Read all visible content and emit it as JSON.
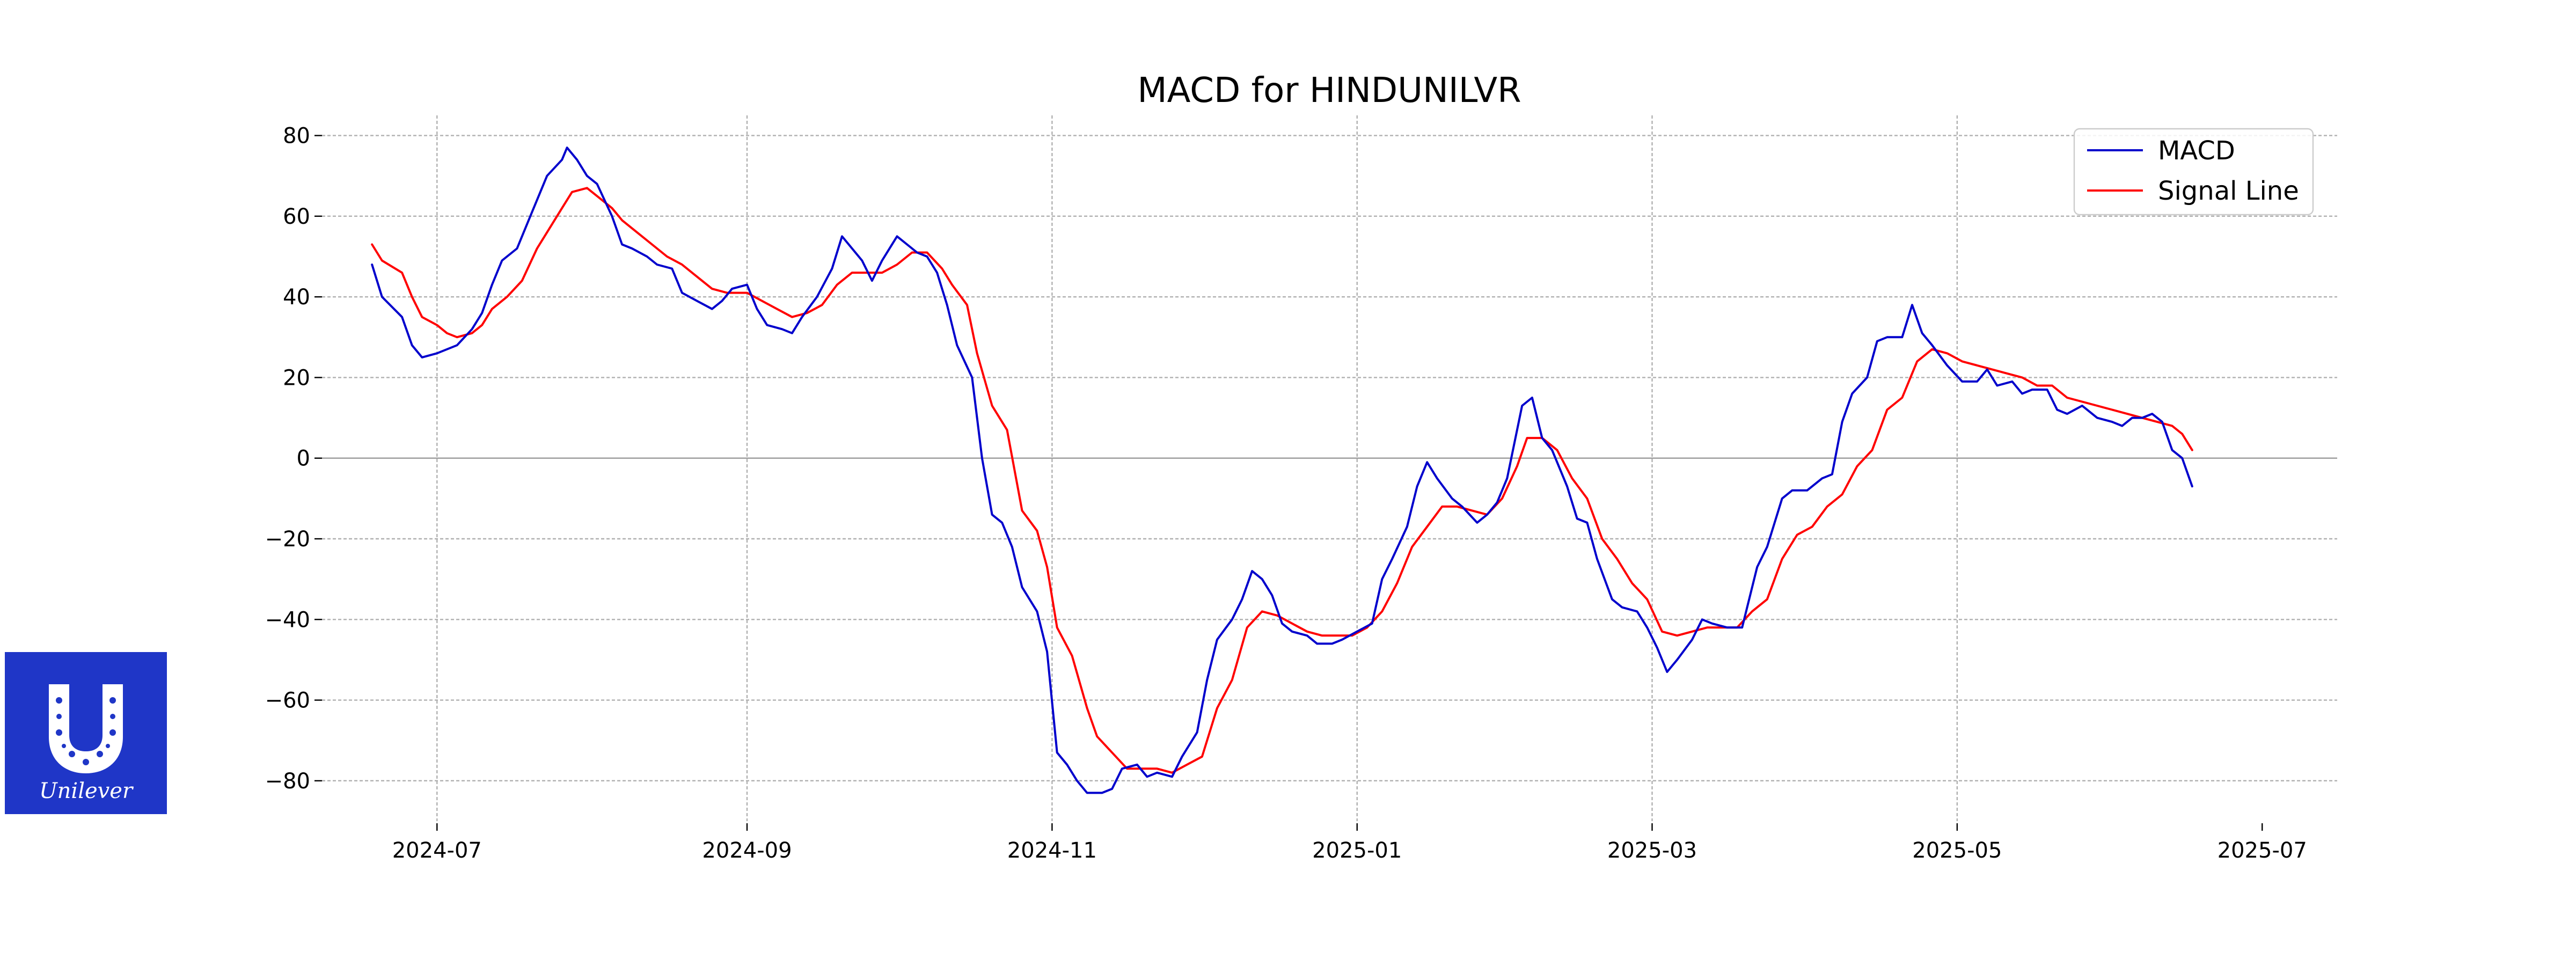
{
  "logo": {
    "text": "Unilever",
    "color": "#1f36c7"
  },
  "chart_data": {
    "type": "line",
    "title": "MACD for HINDUNILVR",
    "xlabel": "",
    "ylabel": "",
    "x_ticks": [
      "2024-07",
      "2024-09",
      "2024-11",
      "2025-01",
      "2025-03",
      "2025-05",
      "2025-07"
    ],
    "y_ticks": [
      80,
      60,
      40,
      20,
      0,
      -20,
      -40,
      -60,
      -80
    ],
    "ylim": [
      -90,
      85
    ],
    "xlim": [
      "2024-06-08",
      "2025-07-16"
    ],
    "grid": true,
    "legend": "top-right",
    "series": [
      {
        "name": "MACD",
        "color": "#0000cc",
        "points": [
          [
            "2024-06-18",
            48
          ],
          [
            "2024-06-20",
            40
          ],
          [
            "2024-06-24",
            35
          ],
          [
            "2024-06-26",
            28
          ],
          [
            "2024-06-28",
            25
          ],
          [
            "2024-07-01",
            26
          ],
          [
            "2024-07-03",
            27
          ],
          [
            "2024-07-05",
            28
          ],
          [
            "2024-07-08",
            32
          ],
          [
            "2024-07-10",
            36
          ],
          [
            "2024-07-12",
            43
          ],
          [
            "2024-07-14",
            49
          ],
          [
            "2024-07-17",
            52
          ],
          [
            "2024-07-20",
            61
          ],
          [
            "2024-07-23",
            70
          ],
          [
            "2024-07-26",
            74
          ],
          [
            "2024-07-27",
            77
          ],
          [
            "2024-07-29",
            74
          ],
          [
            "2024-07-31",
            70
          ],
          [
            "2024-08-02",
            68
          ],
          [
            "2024-08-05",
            60
          ],
          [
            "2024-08-07",
            53
          ],
          [
            "2024-08-09",
            52
          ],
          [
            "2024-08-12",
            50
          ],
          [
            "2024-08-14",
            48
          ],
          [
            "2024-08-17",
            47
          ],
          [
            "2024-08-19",
            41
          ],
          [
            "2024-08-22",
            39
          ],
          [
            "2024-08-25",
            37
          ],
          [
            "2024-08-27",
            39
          ],
          [
            "2024-08-29",
            42
          ],
          [
            "2024-09-01",
            43
          ],
          [
            "2024-09-03",
            37
          ],
          [
            "2024-09-05",
            33
          ],
          [
            "2024-09-08",
            32
          ],
          [
            "2024-09-10",
            31
          ],
          [
            "2024-09-12",
            35
          ],
          [
            "2024-09-15",
            40
          ],
          [
            "2024-09-18",
            47
          ],
          [
            "2024-09-20",
            55
          ],
          [
            "2024-09-22",
            52
          ],
          [
            "2024-09-24",
            49
          ],
          [
            "2024-09-26",
            44
          ],
          [
            "2024-09-28",
            49
          ],
          [
            "2024-10-01",
            55
          ],
          [
            "2024-10-03",
            53
          ],
          [
            "2024-10-05",
            51
          ],
          [
            "2024-10-07",
            50
          ],
          [
            "2024-10-09",
            46
          ],
          [
            "2024-10-11",
            38
          ],
          [
            "2024-10-13",
            28
          ],
          [
            "2024-10-16",
            20
          ],
          [
            "2024-10-18",
            0
          ],
          [
            "2024-10-20",
            -14
          ],
          [
            "2024-10-22",
            -16
          ],
          [
            "2024-10-24",
            -22
          ],
          [
            "2024-10-26",
            -32
          ],
          [
            "2024-10-29",
            -38
          ],
          [
            "2024-10-31",
            -48
          ],
          [
            "2024-11-02",
            -73
          ],
          [
            "2024-11-04",
            -76
          ],
          [
            "2024-11-06",
            -80
          ],
          [
            "2024-11-08",
            -83
          ],
          [
            "2024-11-11",
            -83
          ],
          [
            "2024-11-13",
            -82
          ],
          [
            "2024-11-15",
            -77
          ],
          [
            "2024-11-18",
            -76
          ],
          [
            "2024-11-20",
            -79
          ],
          [
            "2024-11-22",
            -78
          ],
          [
            "2024-11-25",
            -79
          ],
          [
            "2024-11-27",
            -74
          ],
          [
            "2024-11-30",
            -68
          ],
          [
            "2024-12-02",
            -55
          ],
          [
            "2024-12-04",
            -45
          ],
          [
            "2024-12-07",
            -40
          ],
          [
            "2024-12-09",
            -35
          ],
          [
            "2024-12-11",
            -28
          ],
          [
            "2024-12-13",
            -30
          ],
          [
            "2024-12-15",
            -34
          ],
          [
            "2024-12-17",
            -41
          ],
          [
            "2024-12-19",
            -43
          ],
          [
            "2024-12-22",
            -44
          ],
          [
            "2024-12-24",
            -46
          ],
          [
            "2024-12-27",
            -46
          ],
          [
            "2024-12-29",
            -45
          ],
          [
            "2025-01-01",
            -43
          ],
          [
            "2025-01-04",
            -41
          ],
          [
            "2025-01-06",
            -30
          ],
          [
            "2025-01-08",
            -25
          ],
          [
            "2025-01-11",
            -17
          ],
          [
            "2025-01-13",
            -7
          ],
          [
            "2025-01-15",
            -1
          ],
          [
            "2025-01-17",
            -5
          ],
          [
            "2025-01-20",
            -10
          ],
          [
            "2025-01-22",
            -12
          ],
          [
            "2025-01-25",
            -16
          ],
          [
            "2025-01-27",
            -14
          ],
          [
            "2025-01-29",
            -11
          ],
          [
            "2025-01-31",
            -5
          ],
          [
            "2025-02-03",
            13
          ],
          [
            "2025-02-05",
            15
          ],
          [
            "2025-02-07",
            5
          ],
          [
            "2025-02-09",
            2
          ],
          [
            "2025-02-12",
            -7
          ],
          [
            "2025-02-14",
            -15
          ],
          [
            "2025-02-16",
            -16
          ],
          [
            "2025-02-18",
            -25
          ],
          [
            "2025-02-21",
            -35
          ],
          [
            "2025-02-23",
            -37
          ],
          [
            "2025-02-26",
            -38
          ],
          [
            "2025-02-28",
            -42
          ],
          [
            "2025-03-02",
            -47
          ],
          [
            "2025-03-04",
            -53
          ],
          [
            "2025-03-06",
            -50
          ],
          [
            "2025-03-09",
            -45
          ],
          [
            "2025-03-11",
            -40
          ],
          [
            "2025-03-13",
            -41
          ],
          [
            "2025-03-16",
            -42
          ],
          [
            "2025-03-19",
            -42
          ],
          [
            "2025-03-22",
            -27
          ],
          [
            "2025-03-24",
            -22
          ],
          [
            "2025-03-27",
            -10
          ],
          [
            "2025-03-29",
            -8
          ],
          [
            "2025-04-01",
            -8
          ],
          [
            "2025-04-04",
            -5
          ],
          [
            "2025-04-06",
            -4
          ],
          [
            "2025-04-08",
            9
          ],
          [
            "2025-04-10",
            16
          ],
          [
            "2025-04-13",
            20
          ],
          [
            "2025-04-15",
            29
          ],
          [
            "2025-04-17",
            30
          ],
          [
            "2025-04-20",
            30
          ],
          [
            "2025-04-22",
            38
          ],
          [
            "2025-04-24",
            31
          ],
          [
            "2025-04-26",
            28
          ],
          [
            "2025-04-29",
            23
          ],
          [
            "2025-05-02",
            19
          ],
          [
            "2025-05-05",
            19
          ],
          [
            "2025-05-07",
            22
          ],
          [
            "2025-05-09",
            18
          ],
          [
            "2025-05-12",
            19
          ],
          [
            "2025-05-14",
            16
          ],
          [
            "2025-05-16",
            17
          ],
          [
            "2025-05-19",
            17
          ],
          [
            "2025-05-21",
            12
          ],
          [
            "2025-05-23",
            11
          ],
          [
            "2025-05-26",
            13
          ],
          [
            "2025-05-29",
            10
          ],
          [
            "2025-06-01",
            9
          ],
          [
            "2025-06-03",
            8
          ],
          [
            "2025-06-05",
            10
          ],
          [
            "2025-06-07",
            10
          ],
          [
            "2025-06-09",
            11
          ],
          [
            "2025-06-11",
            9
          ],
          [
            "2025-06-13",
            2
          ],
          [
            "2025-06-15",
            0
          ],
          [
            "2025-06-17",
            -7
          ]
        ]
      },
      {
        "name": "Signal Line",
        "color": "#ff0000",
        "points": [
          [
            "2024-06-18",
            53
          ],
          [
            "2024-06-20",
            49
          ],
          [
            "2024-06-24",
            46
          ],
          [
            "2024-06-26",
            40
          ],
          [
            "2024-06-28",
            35
          ],
          [
            "2024-07-01",
            33
          ],
          [
            "2024-07-03",
            31
          ],
          [
            "2024-07-05",
            30
          ],
          [
            "2024-07-08",
            31
          ],
          [
            "2024-07-10",
            33
          ],
          [
            "2024-07-12",
            37
          ],
          [
            "2024-07-15",
            40
          ],
          [
            "2024-07-18",
            44
          ],
          [
            "2024-07-21",
            52
          ],
          [
            "2024-07-24",
            58
          ],
          [
            "2024-07-26",
            62
          ],
          [
            "2024-07-28",
            66
          ],
          [
            "2024-07-31",
            67
          ],
          [
            "2024-08-02",
            65
          ],
          [
            "2024-08-05",
            62
          ],
          [
            "2024-08-07",
            59
          ],
          [
            "2024-08-10",
            56
          ],
          [
            "2024-08-13",
            53
          ],
          [
            "2024-08-16",
            50
          ],
          [
            "2024-08-19",
            48
          ],
          [
            "2024-08-22",
            45
          ],
          [
            "2024-08-25",
            42
          ],
          [
            "2024-08-28",
            41
          ],
          [
            "2024-09-01",
            41
          ],
          [
            "2024-09-04",
            39
          ],
          [
            "2024-09-07",
            37
          ],
          [
            "2024-09-10",
            35
          ],
          [
            "2024-09-13",
            36
          ],
          [
            "2024-09-16",
            38
          ],
          [
            "2024-09-19",
            43
          ],
          [
            "2024-09-22",
            46
          ],
          [
            "2024-09-25",
            46
          ],
          [
            "2024-09-28",
            46
          ],
          [
            "2024-10-01",
            48
          ],
          [
            "2024-10-04",
            51
          ],
          [
            "2024-10-07",
            51
          ],
          [
            "2024-10-10",
            47
          ],
          [
            "2024-10-12",
            43
          ],
          [
            "2024-10-15",
            38
          ],
          [
            "2024-10-17",
            26
          ],
          [
            "2024-10-20",
            13
          ],
          [
            "2024-10-23",
            7
          ],
          [
            "2024-10-26",
            -13
          ],
          [
            "2024-10-29",
            -18
          ],
          [
            "2024-10-31",
            -27
          ],
          [
            "2024-11-02",
            -42
          ],
          [
            "2024-11-05",
            -49
          ],
          [
            "2024-11-08",
            -62
          ],
          [
            "2024-11-10",
            -69
          ],
          [
            "2024-11-13",
            -73
          ],
          [
            "2024-11-16",
            -77
          ],
          [
            "2024-11-19",
            -77
          ],
          [
            "2024-11-22",
            -77
          ],
          [
            "2024-11-25",
            -78
          ],
          [
            "2024-11-28",
            -76
          ],
          [
            "2024-12-01",
            -74
          ],
          [
            "2024-12-04",
            -62
          ],
          [
            "2024-12-07",
            -55
          ],
          [
            "2024-12-10",
            -42
          ],
          [
            "2024-12-13",
            -38
          ],
          [
            "2024-12-16",
            -39
          ],
          [
            "2024-12-19",
            -41
          ],
          [
            "2024-12-22",
            -43
          ],
          [
            "2024-12-25",
            -44
          ],
          [
            "2024-12-28",
            -44
          ],
          [
            "2024-12-31",
            -44
          ],
          [
            "2025-01-03",
            -42
          ],
          [
            "2025-01-06",
            -38
          ],
          [
            "2025-01-09",
            -31
          ],
          [
            "2025-01-12",
            -22
          ],
          [
            "2025-01-15",
            -17
          ],
          [
            "2025-01-18",
            -12
          ],
          [
            "2025-01-21",
            -12
          ],
          [
            "2025-01-24",
            -13
          ],
          [
            "2025-01-27",
            -14
          ],
          [
            "2025-01-30",
            -10
          ],
          [
            "2025-02-02",
            -2
          ],
          [
            "2025-02-04",
            5
          ],
          [
            "2025-02-07",
            5
          ],
          [
            "2025-02-10",
            2
          ],
          [
            "2025-02-13",
            -5
          ],
          [
            "2025-02-16",
            -10
          ],
          [
            "2025-02-19",
            -20
          ],
          [
            "2025-02-22",
            -25
          ],
          [
            "2025-02-25",
            -31
          ],
          [
            "2025-02-28",
            -35
          ],
          [
            "2025-03-03",
            -43
          ],
          [
            "2025-03-06",
            -44
          ],
          [
            "2025-03-09",
            -43
          ],
          [
            "2025-03-12",
            -42
          ],
          [
            "2025-03-15",
            -42
          ],
          [
            "2025-03-18",
            -42
          ],
          [
            "2025-03-21",
            -38
          ],
          [
            "2025-03-24",
            -35
          ],
          [
            "2025-03-27",
            -25
          ],
          [
            "2025-03-30",
            -19
          ],
          [
            "2025-04-02",
            -17
          ],
          [
            "2025-04-05",
            -12
          ],
          [
            "2025-04-08",
            -9
          ],
          [
            "2025-04-11",
            -2
          ],
          [
            "2025-04-14",
            2
          ],
          [
            "2025-04-17",
            12
          ],
          [
            "2025-04-20",
            15
          ],
          [
            "2025-04-23",
            24
          ],
          [
            "2025-04-26",
            27
          ],
          [
            "2025-04-29",
            26
          ],
          [
            "2025-05-02",
            24
          ],
          [
            "2025-05-05",
            23
          ],
          [
            "2025-05-08",
            22
          ],
          [
            "2025-05-11",
            21
          ],
          [
            "2025-05-14",
            20
          ],
          [
            "2025-05-17",
            18
          ],
          [
            "2025-05-20",
            18
          ],
          [
            "2025-05-23",
            15
          ],
          [
            "2025-05-26",
            14
          ],
          [
            "2025-05-29",
            13
          ],
          [
            "2025-06-01",
            12
          ],
          [
            "2025-06-04",
            11
          ],
          [
            "2025-06-07",
            10
          ],
          [
            "2025-06-10",
            9
          ],
          [
            "2025-06-13",
            8
          ],
          [
            "2025-06-15",
            6
          ],
          [
            "2025-06-17",
            2
          ]
        ]
      }
    ]
  }
}
